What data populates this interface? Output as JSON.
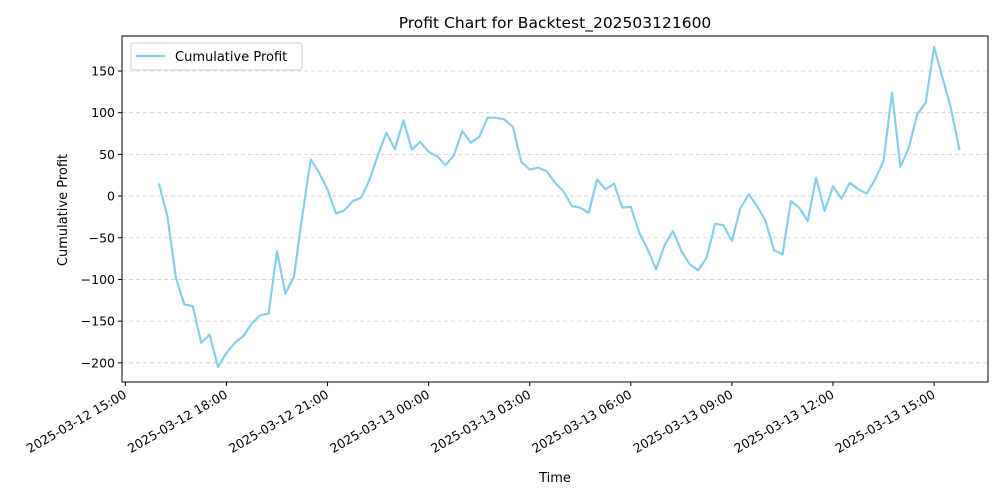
{
  "chart_data": {
    "type": "line",
    "title": "Profit Chart for Backtest_202503121600",
    "xlabel": "Time",
    "ylabel": "Cumulative Profit",
    "xlim": [
      "2025-03-12 14:54",
      "2025-03-13 16:36"
    ],
    "ylim": [
      -223,
      192
    ],
    "grid": "y-dashed",
    "legend_position": "top-left",
    "x_ticks": [
      "2025-03-12 15:00",
      "2025-03-12 18:00",
      "2025-03-12 21:00",
      "2025-03-13 00:00",
      "2025-03-13 03:00",
      "2025-03-13 06:00",
      "2025-03-13 09:00",
      "2025-03-13 12:00",
      "2025-03-13 15:00"
    ],
    "y_ticks": [
      -200,
      -150,
      -100,
      -50,
      0,
      50,
      100,
      150
    ],
    "y_tick_labels": [
      "−200",
      "−150",
      "−100",
      "−50",
      "0",
      "50",
      "100",
      "150"
    ],
    "series": [
      {
        "name": "Cumulative Profit",
        "color": "#87CEEB",
        "x": [
          "2025-03-12 16:00",
          "2025-03-12 16:15",
          "2025-03-12 16:30",
          "2025-03-12 16:45",
          "2025-03-12 17:00",
          "2025-03-12 17:15",
          "2025-03-12 17:30",
          "2025-03-12 17:45",
          "2025-03-12 18:00",
          "2025-03-12 18:15",
          "2025-03-12 18:30",
          "2025-03-12 18:45",
          "2025-03-12 19:00",
          "2025-03-12 19:15",
          "2025-03-12 19:30",
          "2025-03-12 19:45",
          "2025-03-12 20:00",
          "2025-03-12 20:15",
          "2025-03-12 20:30",
          "2025-03-12 20:45",
          "2025-03-12 21:00",
          "2025-03-12 21:15",
          "2025-03-12 21:30",
          "2025-03-12 21:45",
          "2025-03-12 22:00",
          "2025-03-12 22:15",
          "2025-03-12 22:30",
          "2025-03-12 22:45",
          "2025-03-12 23:00",
          "2025-03-12 23:15",
          "2025-03-12 23:30",
          "2025-03-12 23:45",
          "2025-03-13 00:00",
          "2025-03-13 00:15",
          "2025-03-13 00:30",
          "2025-03-13 00:45",
          "2025-03-13 01:00",
          "2025-03-13 01:15",
          "2025-03-13 01:30",
          "2025-03-13 01:45",
          "2025-03-13 02:00",
          "2025-03-13 02:15",
          "2025-03-13 02:30",
          "2025-03-13 02:45",
          "2025-03-13 03:00",
          "2025-03-13 03:15",
          "2025-03-13 03:30",
          "2025-03-13 03:45",
          "2025-03-13 04:00",
          "2025-03-13 04:15",
          "2025-03-13 04:30",
          "2025-03-13 04:45",
          "2025-03-13 05:00",
          "2025-03-13 05:15",
          "2025-03-13 05:30",
          "2025-03-13 05:45",
          "2025-03-13 06:00",
          "2025-03-13 06:15",
          "2025-03-13 06:30",
          "2025-03-13 06:45",
          "2025-03-13 07:00",
          "2025-03-13 07:15",
          "2025-03-13 07:30",
          "2025-03-13 07:45",
          "2025-03-13 08:00",
          "2025-03-13 08:15",
          "2025-03-13 08:30",
          "2025-03-13 08:45",
          "2025-03-13 09:00",
          "2025-03-13 09:15",
          "2025-03-13 09:30",
          "2025-03-13 09:45",
          "2025-03-13 10:00",
          "2025-03-13 10:15",
          "2025-03-13 10:30",
          "2025-03-13 10:45",
          "2025-03-13 11:00",
          "2025-03-13 11:15",
          "2025-03-13 11:30",
          "2025-03-13 11:45",
          "2025-03-13 12:00",
          "2025-03-13 12:15",
          "2025-03-13 12:30",
          "2025-03-13 12:45",
          "2025-03-13 13:00",
          "2025-03-13 13:15",
          "2025-03-13 13:30",
          "2025-03-13 13:45",
          "2025-03-13 14:00",
          "2025-03-13 14:15",
          "2025-03-13 14:30",
          "2025-03-13 14:45",
          "2025-03-13 15:00",
          "2025-03-13 15:15",
          "2025-03-13 15:30",
          "2025-03-13 15:45"
        ],
        "y": [
          14,
          -25,
          -98,
          -130,
          -132,
          -176,
          -166,
          -205,
          -188,
          -176,
          -168,
          -153,
          -143,
          -141,
          -66,
          -117,
          -97,
          -24,
          44,
          28,
          8,
          -21,
          -17,
          -6,
          -2,
          20,
          50,
          76,
          56,
          91,
          56,
          65,
          53,
          48,
          37,
          49,
          78,
          64,
          71,
          94,
          94,
          92,
          83,
          41,
          32,
          34,
          30,
          16,
          6,
          -12,
          -14,
          -20,
          20,
          8,
          15,
          -14,
          -13,
          -44,
          -64,
          -88,
          -59,
          -42,
          -66,
          -82,
          -89,
          -74,
          -33,
          -35,
          -54,
          -15,
          2,
          -12,
          -30,
          -65,
          -70,
          -6,
          -14,
          -30,
          22,
          -18,
          12,
          -3,
          16,
          8,
          3,
          20,
          42,
          124,
          35,
          58,
          98,
          112,
          179,
          142,
          105,
          56
        ]
      }
    ]
  }
}
